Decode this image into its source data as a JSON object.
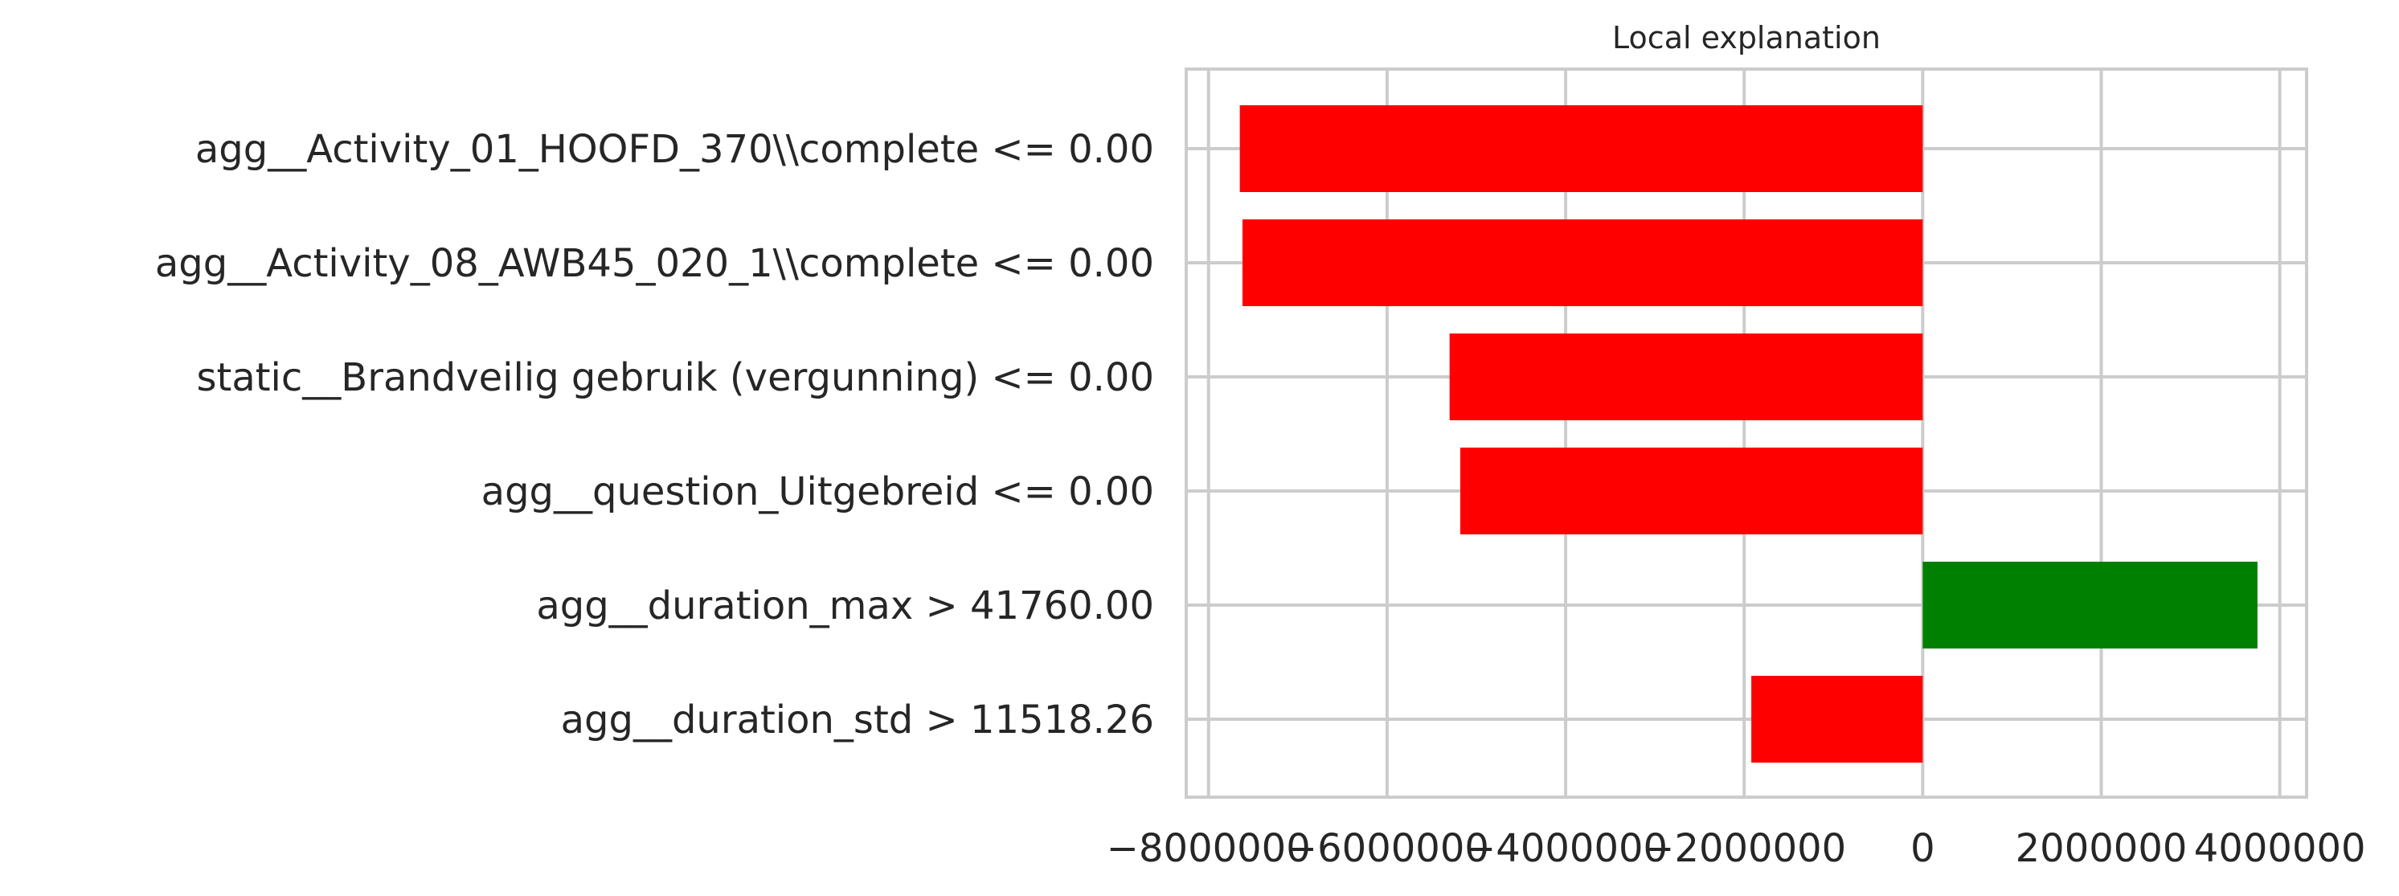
{
  "chart_data": {
    "type": "bar",
    "orientation": "horizontal",
    "title": "Local explanation",
    "xlabel": "",
    "ylabel": "",
    "categories": [
      "agg__Activity_01_HOOFD_370\\\\complete <= 0.00",
      "agg__Activity_08_AWB45_020_1\\\\complete <= 0.00",
      "static__Brandveilig gebruik (vergunning) <= 0.00",
      "agg__question_Uitgebreid <= 0.00",
      "agg__duration_max > 41760.00",
      "agg__duration_std > 11518.26"
    ],
    "values": [
      -7650000,
      -7620000,
      -5300000,
      -5180000,
      3750000,
      -1920000
    ],
    "xlim": [
      -8250000,
      4300000
    ],
    "xticks": [
      -8000000,
      -6000000,
      -4000000,
      -2000000,
      0,
      2000000,
      4000000
    ],
    "xtick_labels": [
      "−8000000",
      "−6000000",
      "−4000000",
      "−2000000",
      "0",
      "2000000",
      "4000000"
    ],
    "grid": true,
    "colors": {
      "negative": "#ff0000",
      "positive": "#008000",
      "grid": "#cccccc",
      "text": "#262626"
    }
  }
}
